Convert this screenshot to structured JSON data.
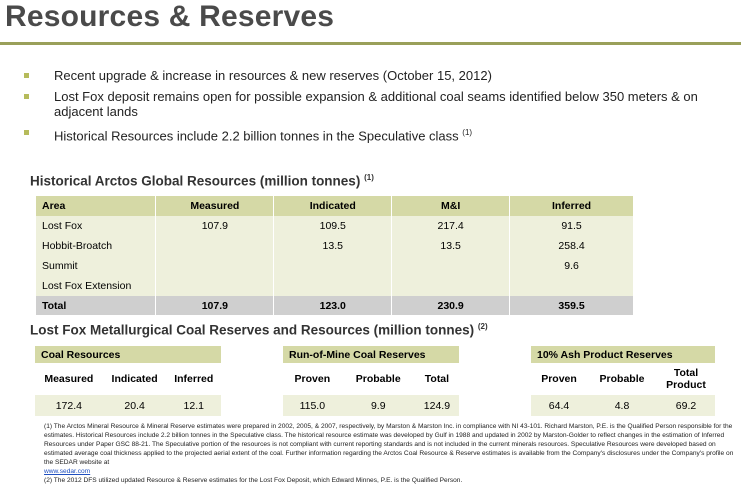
{
  "title": "Resources & Reserves",
  "bullets": [
    {
      "text": "Recent upgrade & increase in resources & new reserves (October 15, 2012)",
      "sup": ""
    },
    {
      "text": "Lost Fox deposit remains open for possible expansion & additional coal seams identified below 350 meters & on adjacent lands",
      "sup": ""
    },
    {
      "text": "Historical Resources include 2.2 billion tonnes in the Speculative class",
      "sup": "(1)"
    }
  ],
  "table1": {
    "heading": "Historical Arctos Global Resources (million tonnes)",
    "heading_sup": "(1)",
    "headers": [
      "Area",
      "Measured",
      "Indicated",
      "M&I",
      "Inferred"
    ],
    "rows": [
      [
        "Lost Fox",
        "107.9",
        "109.5",
        "217.4",
        "91.5"
      ],
      [
        "Hobbit-Broatch",
        "",
        "13.5",
        "13.5",
        "258.4"
      ],
      [
        "Summit",
        "",
        "",
        "",
        "9.6"
      ],
      [
        "Lost Fox Extension",
        "",
        "",
        "",
        ""
      ]
    ],
    "total": [
      "Total",
      "107.9",
      "123.0",
      "230.9",
      "359.5"
    ]
  },
  "table2_heading": "Lost Fox Metallurgical Coal Reserves and Resources (million tonnes)",
  "table2_sup": "(2)",
  "coal_resources": {
    "title": "Coal Resources",
    "cols": [
      "Measured",
      "Indicated",
      "Inferred"
    ],
    "vals": [
      "172.4",
      "20.4",
      "12.1"
    ]
  },
  "rom_reserves": {
    "title": "Run-of-Mine Coal Reserves",
    "cols": [
      "Proven",
      "Probable",
      "Total"
    ],
    "vals": [
      "115.0",
      "9.9",
      "124.9"
    ]
  },
  "ash_reserves": {
    "title": "10% Ash Product Reserves",
    "cols": [
      "Proven",
      "Probable",
      "Total Product"
    ],
    "vals": [
      "64.4",
      "4.8",
      "69.2"
    ]
  },
  "footnotes": {
    "note1": "(1)  The Arctos Mineral Resource & Mineral Reserve estimates were prepared in 2002, 2005, & 2007, respectively, by Marston & Marston Inc. in compliance with NI 43-101. Richard Marston, P.E. is the Qualified Person responsible for the estimates.  Historical Resources include 2.2 billion tonnes in the Speculative class. The historical resource estimate was developed by Gulf in 1988 and updated in 2002 by Marston-Golder to reflect changes in the estimation of Inferred Resources under Paper GSC 88-21. The Speculative portion of the resources is not compliant with current reporting standards and is not included in the current minerals resources. Speculative Resources were developed based on estimated average coal thickness applied to the projected aerial extent of the coal. Further information regarding the Arctos Coal Resource & Reserve estimates is available from the Company's disclosures under the Company's profile on the SEDAR website at",
    "link": "www.sedar.com",
    "note2": "(2)  The 2012 DFS utilized updated Resource & Reserve estimates for the Lost Fox Deposit, which Edward Minnes, P.E. is the Qualified Person."
  }
}
